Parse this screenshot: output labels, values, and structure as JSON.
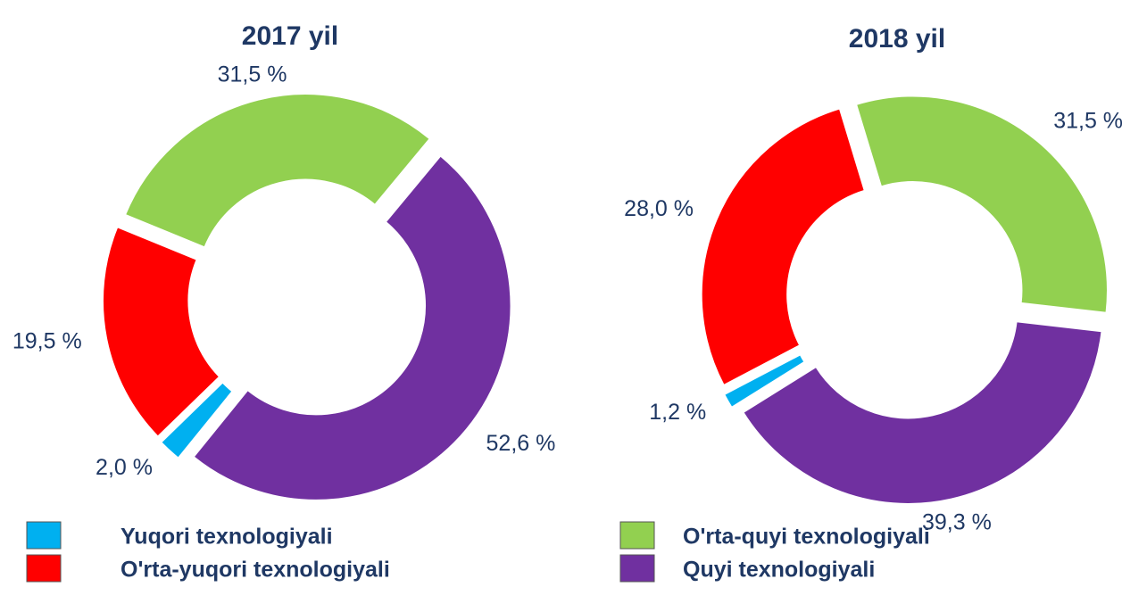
{
  "chart_data": [
    {
      "type": "pie",
      "donut": true,
      "title": "2017 yil",
      "values": [
        2.0,
        19.5,
        31.5,
        52.6
      ],
      "value_labels": [
        "2,0 %",
        "19,5 %",
        "31,5 %",
        "52,6 %"
      ]
    },
    {
      "type": "pie",
      "donut": true,
      "title": "2018 yil",
      "values": [
        1.2,
        28.0,
        31.5,
        39.3
      ],
      "value_labels": [
        "1,2 %",
        "28,0 %",
        "31,5 %",
        "39,3 %"
      ]
    }
  ],
  "legend": {
    "labels": [
      "Yuqori texnologiyali",
      "O'rta-yuqori texnologiyali",
      "O'rta-quyi texnologiyali",
      "Quyi texnologiyali"
    ],
    "colors": [
      "#00b0f0",
      "#ff0000",
      "#92d050",
      "#7030a0"
    ]
  }
}
